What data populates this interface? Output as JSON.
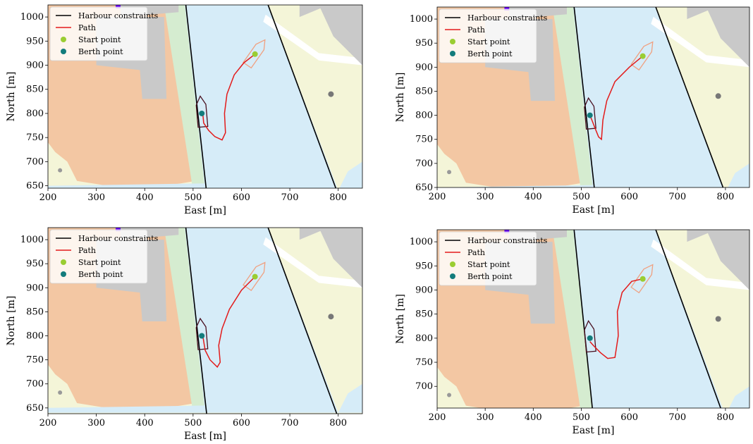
{
  "legend": {
    "harbour": "Harbour constraints",
    "path": "Path",
    "start": "Start point",
    "berth": "Berth point"
  },
  "colors": {
    "water": "#d6ecf8",
    "land": "#f4f5d8",
    "parcel": "#f3c7a3",
    "building": "#c9c9c9",
    "green_strip": "#d5ecd0",
    "constraint": "#000000",
    "path": "#e31b1b",
    "start": "#9acd32",
    "berth": "#137c7c",
    "vessel_start": "#f0a080",
    "vessel_berth": "#4a1020",
    "marker": "#6a00ff"
  },
  "chart_data": [
    {
      "type": "line",
      "xlabel": "East [m]",
      "ylabel": "North [m]",
      "xlim": [
        200,
        850
      ],
      "ylim": [
        645,
        1025
      ],
      "xticks": [
        200,
        300,
        400,
        500,
        600,
        700,
        800
      ],
      "yticks": [
        650,
        700,
        750,
        800,
        850,
        900,
        950,
        1000
      ],
      "legend_position": "top-left",
      "series": [
        {
          "name": "Harbour constraints",
          "segments": [
            [
              [
                485,
                1025
              ],
              [
                527,
                645
              ]
            ],
            [
              [
                655,
                1025
              ],
              [
                795,
                645
              ]
            ]
          ]
        },
        {
          "name": "Path",
          "x": [
            628,
            605,
            585,
            570,
            565,
            567,
            560,
            545,
            532,
            522,
            520
          ],
          "y": [
            923,
            905,
            880,
            840,
            800,
            760,
            745,
            752,
            765,
            780,
            800
          ]
        },
        {
          "name": "Start point",
          "x": [
            628
          ],
          "y": [
            923
          ]
        },
        {
          "name": "Berth point",
          "x": [
            518
          ],
          "y": [
            800
          ]
        }
      ]
    },
    {
      "type": "line",
      "xlabel": "East [m]",
      "ylabel": "North [m]",
      "xlim": [
        200,
        850
      ],
      "ylim": [
        650,
        1025
      ],
      "xticks": [
        200,
        300,
        400,
        500,
        600,
        700,
        800
      ],
      "yticks": [
        650,
        700,
        750,
        800,
        850,
        900,
        950,
        1000
      ],
      "legend_position": "top-left",
      "series": [
        {
          "name": "Harbour constraints",
          "segments": [
            [
              [
                485,
                1025
              ],
              [
                527,
                650
              ]
            ],
            [
              [
                655,
                1025
              ],
              [
                795,
                650
              ]
            ]
          ]
        },
        {
          "name": "Path",
          "x": [
            628,
            600,
            570,
            553,
            545,
            542,
            536,
            528,
            522,
            518
          ],
          "y": [
            923,
            900,
            870,
            830,
            790,
            750,
            755,
            775,
            790,
            800
          ]
        },
        {
          "name": "Start point",
          "x": [
            628
          ],
          "y": [
            923
          ]
        },
        {
          "name": "Berth point",
          "x": [
            518
          ],
          "y": [
            800
          ]
        }
      ]
    },
    {
      "type": "line",
      "xlabel": "East [m]",
      "ylabel": "North [m]",
      "xlim": [
        200,
        850
      ],
      "ylim": [
        638,
        1025
      ],
      "xticks": [
        200,
        300,
        400,
        500,
        600,
        700,
        800
      ],
      "yticks": [
        650,
        700,
        750,
        800,
        850,
        900,
        950,
        1000
      ],
      "legend_position": "top-left",
      "series": [
        {
          "name": "Harbour constraints",
          "segments": [
            [
              [
                485,
                1025
              ],
              [
                528,
                638
              ]
            ],
            [
              [
                655,
                1025
              ],
              [
                797,
                638
              ]
            ]
          ]
        },
        {
          "name": "Path",
          "x": [
            628,
            600,
            575,
            560,
            553,
            556,
            550,
            535,
            525,
            520
          ],
          "y": [
            923,
            895,
            855,
            815,
            780,
            745,
            735,
            750,
            770,
            800
          ]
        },
        {
          "name": "Start point",
          "x": [
            628
          ],
          "y": [
            923
          ]
        },
        {
          "name": "Berth point",
          "x": [
            518
          ],
          "y": [
            800
          ]
        }
      ]
    },
    {
      "type": "line",
      "xlabel": "East [m]",
      "ylabel": "North [m]",
      "xlim": [
        200,
        850
      ],
      "ylim": [
        655,
        1025
      ],
      "xticks": [
        200,
        300,
        400,
        500,
        600,
        700,
        800
      ],
      "yticks": [
        700,
        750,
        800,
        850,
        900,
        950,
        1000
      ],
      "legend_position": "top-left",
      "series": [
        {
          "name": "Harbour constraints",
          "segments": [
            [
              [
                485,
                1025
              ],
              [
                523,
                655
              ]
            ],
            [
              [
                655,
                1025
              ],
              [
                790,
                655
              ]
            ]
          ]
        },
        {
          "name": "Path",
          "x": [
            628,
            605,
            585,
            575,
            577,
            570,
            555,
            540,
            525,
            518
          ],
          "y": [
            923,
            918,
            895,
            855,
            805,
            760,
            758,
            770,
            785,
            793
          ]
        },
        {
          "name": "Start point",
          "x": [
            628
          ],
          "y": [
            923
          ]
        },
        {
          "name": "Berth point",
          "x": [
            518
          ],
          "y": [
            800
          ]
        }
      ]
    }
  ]
}
